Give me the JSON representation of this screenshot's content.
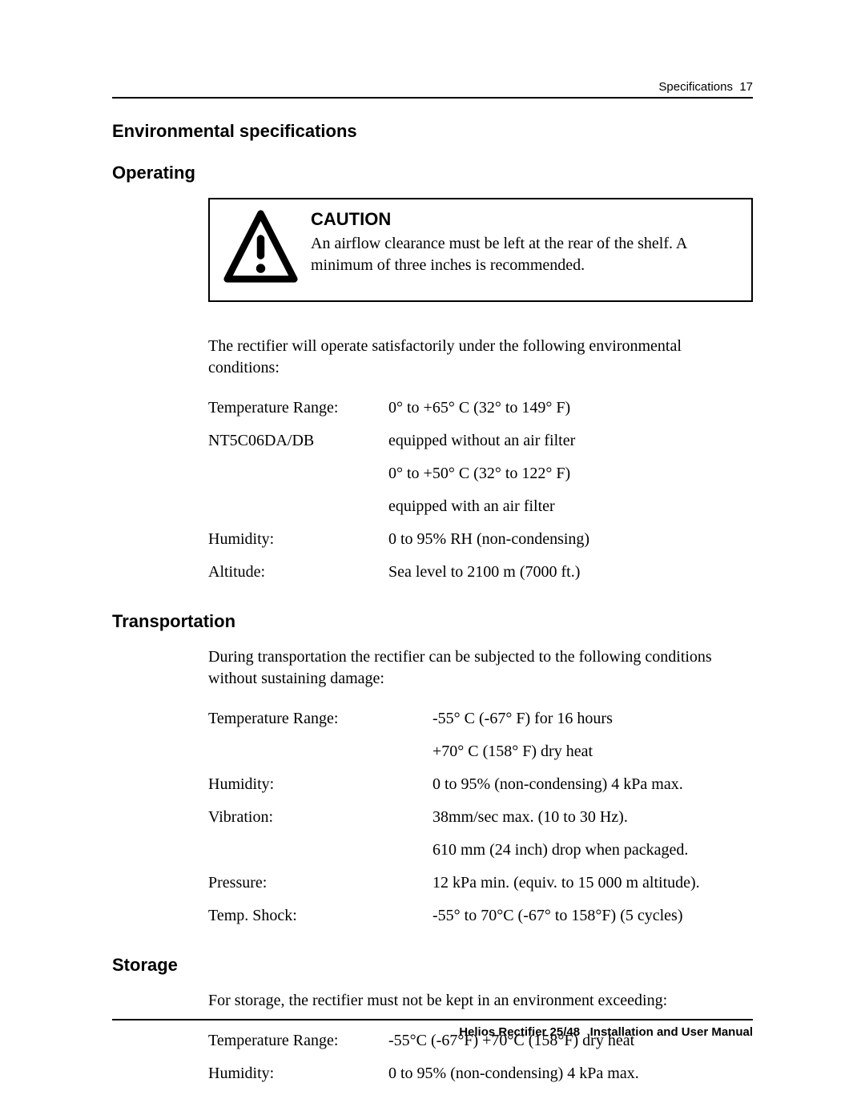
{
  "header": {
    "section": "Specifications",
    "page_num": "17"
  },
  "footer": {
    "product": "Helios Rectifier 25/48",
    "doc": "Installation and User Manual"
  },
  "headings": {
    "env": "Environmental specifications",
    "operating": "Operating",
    "transportation": "Transportation",
    "storage": "Storage"
  },
  "caution": {
    "title": "CAUTION",
    "body": "An airflow clearance must be left at the rear of the shelf. A minimum of three inches is recommended."
  },
  "operating": {
    "intro": "The rectifier will operate satisfactorily under the following environmental conditions:",
    "rows": [
      {
        "label": "Temperature Range:",
        "value": "0° to +65° C (32° to 149° F)"
      },
      {
        "label": "NT5C06DA/DB",
        "value": "equipped without an air filter"
      },
      {
        "label": "",
        "value": "0° to +50° C (32° to 122° F)"
      },
      {
        "label": "",
        "value": "equipped with an air filter"
      },
      {
        "label": "Humidity:",
        "value": "0 to 95% RH (non-condensing)"
      },
      {
        "label": "Altitude:",
        "value": "Sea level to 2100 m (7000 ft.)"
      }
    ]
  },
  "transportation": {
    "intro": "During transportation the rectifier can be subjected to the following conditions without sustaining damage:",
    "rows": [
      {
        "label": "Temperature Range:",
        "value": "-55° C (-67° F) for 16 hours"
      },
      {
        "label": "",
        "value": "+70° C (158° F) dry heat"
      },
      {
        "label": "Humidity:",
        "value": "0 to 95% (non-condensing) 4 kPa max."
      },
      {
        "label": "Vibration:",
        "value": "38mm/sec max. (10 to 30 Hz)."
      },
      {
        "label": "",
        "value": "610 mm (24 inch) drop when packaged."
      },
      {
        "label": "Pressure:",
        "value": "12 kPa min. (equiv. to 15 000 m altitude)."
      },
      {
        "label": "Temp. Shock:",
        "value": "-55° to 70°C (-67° to 158°F) (5 cycles)"
      }
    ]
  },
  "storage": {
    "intro": "For storage, the rectifier must not be kept in an environment exceeding:",
    "rows": [
      {
        "label": "Temperature Range:",
        "value": "-55°C (-67°F) +70°C (158°F) dry heat"
      },
      {
        "label": "Humidity:",
        "value": "0 to 95% (non-condensing) 4 kPa max."
      }
    ]
  }
}
